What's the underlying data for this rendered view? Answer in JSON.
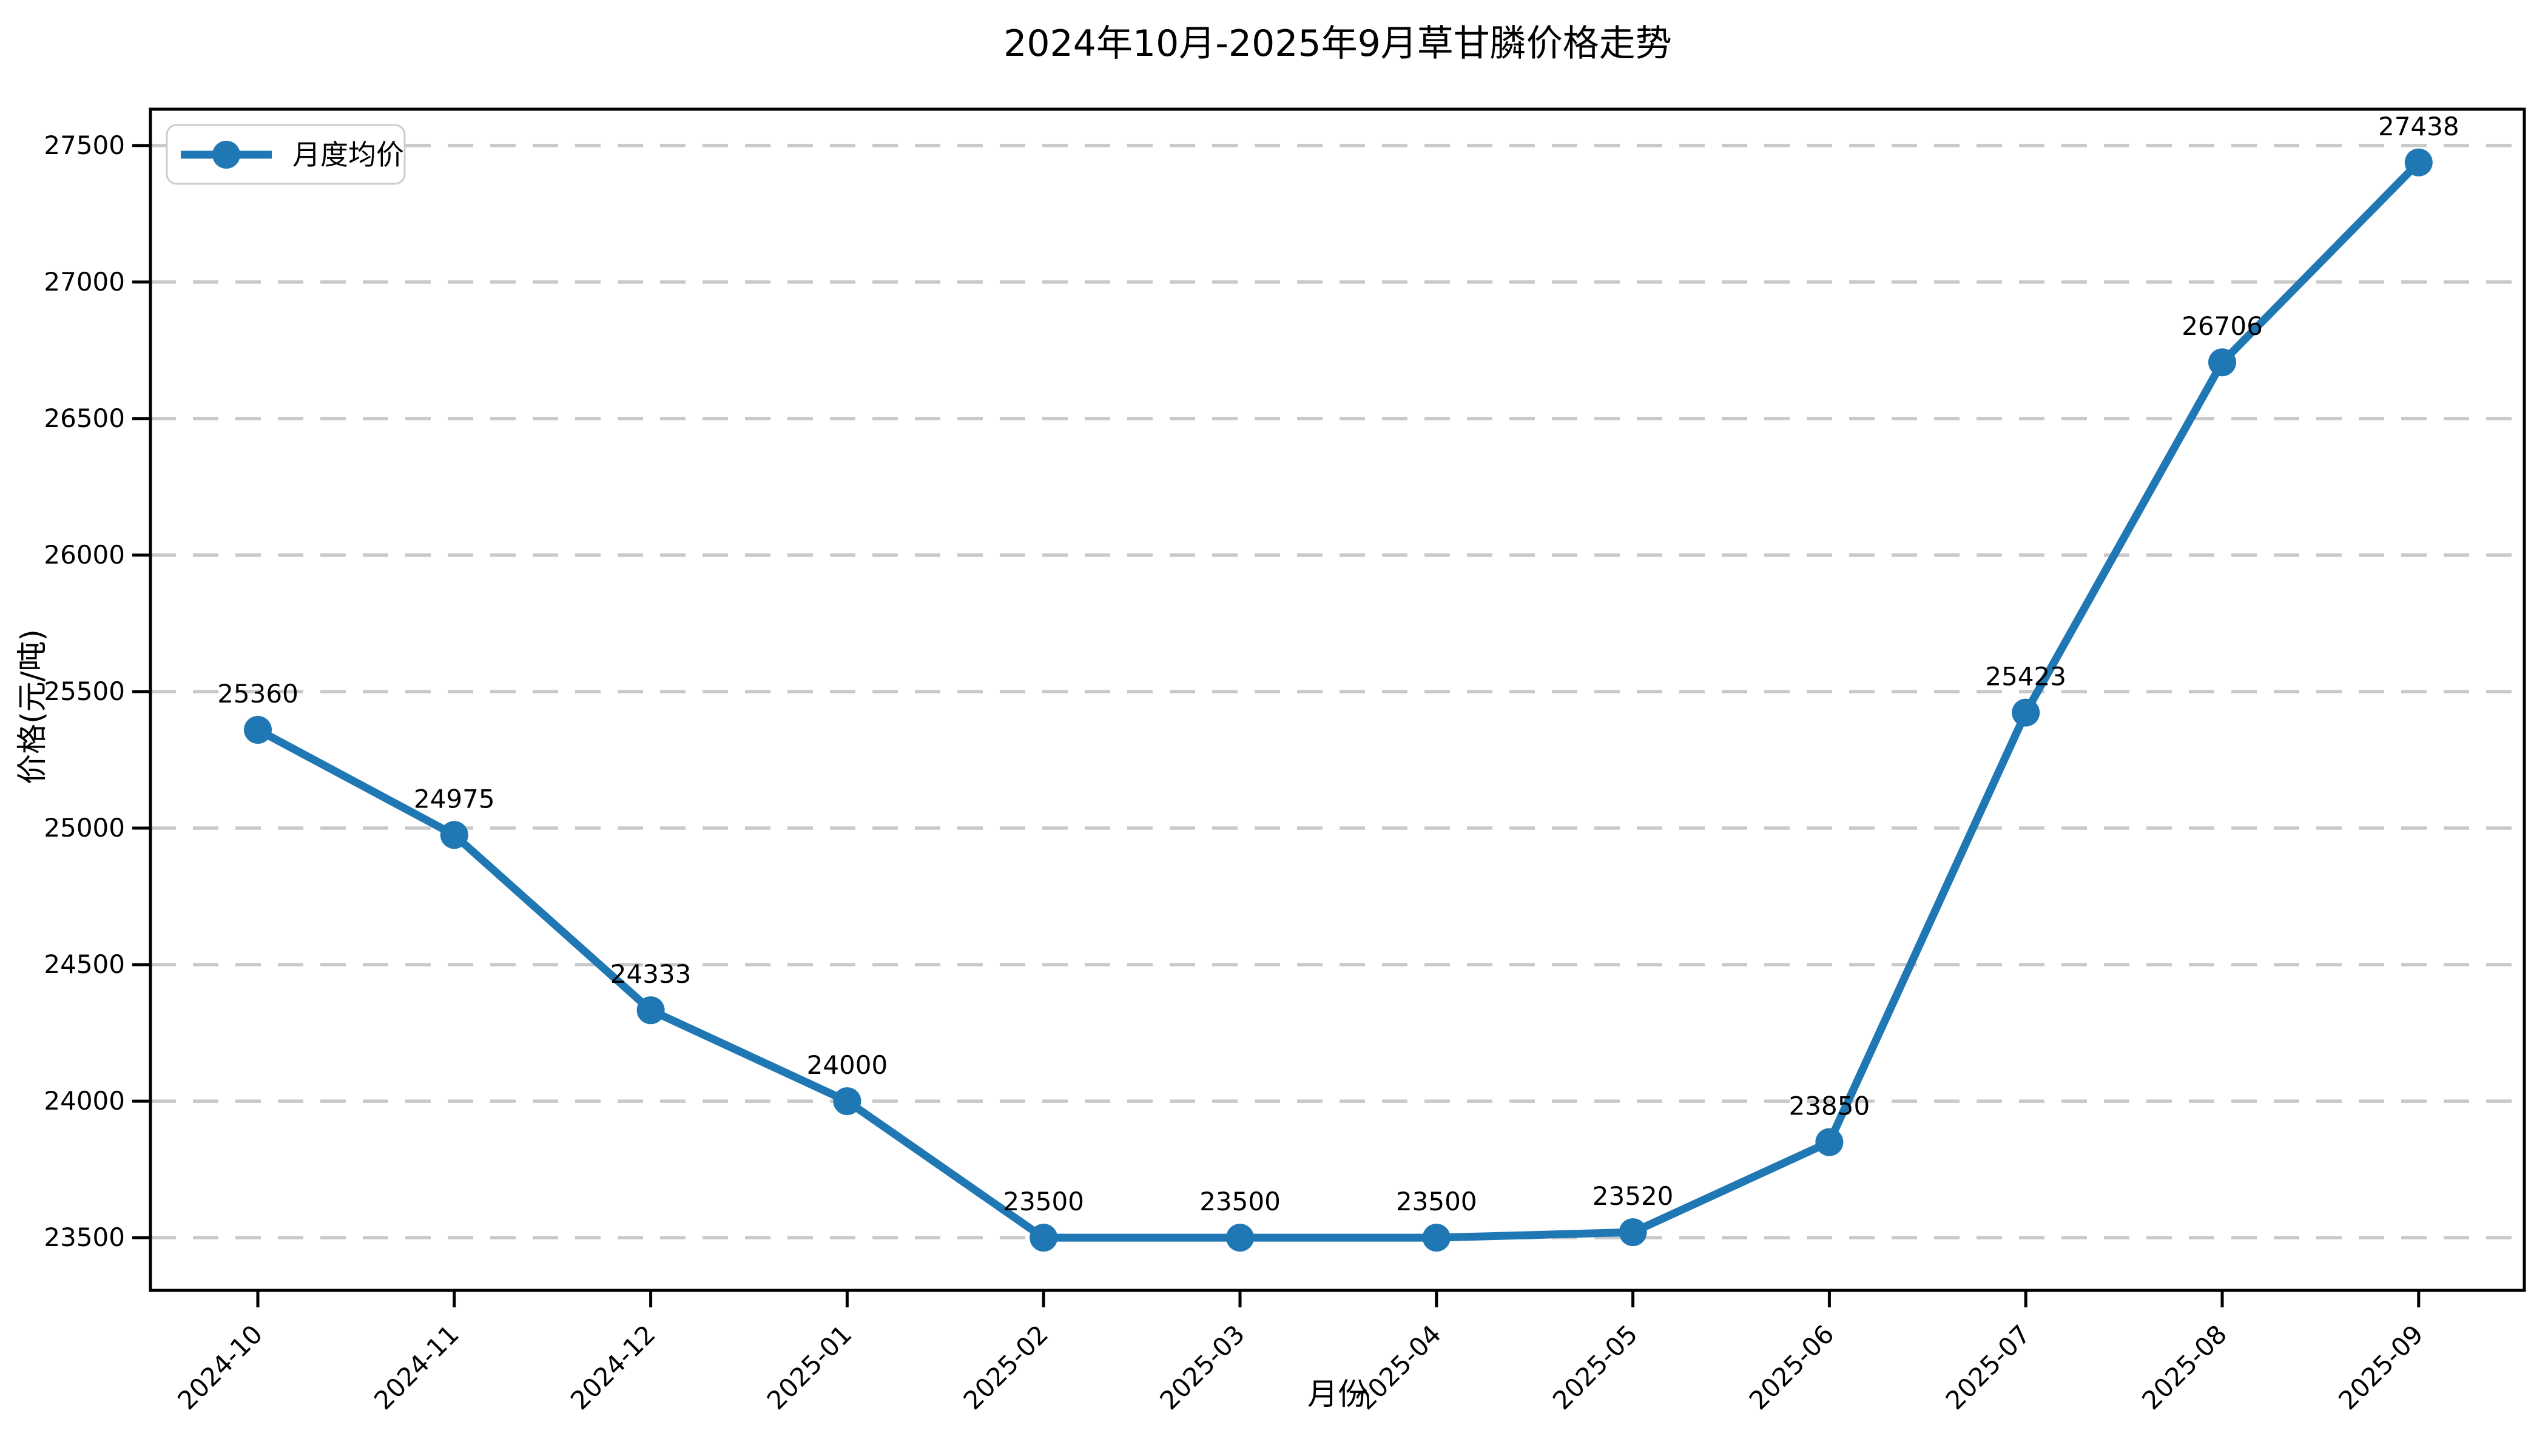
{
  "chart_data": {
    "type": "line",
    "title": "2024年10月-2025年9月草甘膦价格走势",
    "xlabel": "月份",
    "ylabel": "价格(元/吨)",
    "categories": [
      "2024-10",
      "2024-11",
      "2024-12",
      "2025-01",
      "2025-02",
      "2025-03",
      "2025-04",
      "2025-05",
      "2025-06",
      "2025-07",
      "2025-08",
      "2025-09"
    ],
    "series": [
      {
        "name": "月度均价",
        "values": [
          25360,
          24975,
          24333,
          24000,
          23500,
          23500,
          23500,
          23520,
          23850,
          25423,
          26706,
          27438
        ]
      }
    ],
    "point_labels": [
      "25360",
      "24975",
      "24333",
      "24000",
      "23500",
      "23500",
      "23500",
      "23520",
      "23850",
      "25423",
      "26706",
      "27438"
    ],
    "y_ticks": [
      23500,
      24000,
      24500,
      25000,
      25500,
      26000,
      26500,
      27000,
      27500
    ],
    "ylim": [
      23307,
      27633
    ],
    "x_tick_rotation_deg": 45,
    "grid": "horizontal-dashed",
    "legend_position": "upper-left",
    "colors": {
      "line": "#1f77b4",
      "marker": "#1f77b4",
      "grid": "#c9c9c9",
      "spine": "#000000",
      "legend_border": "#cccccc",
      "background": "#ffffff",
      "text": "#000000"
    }
  }
}
